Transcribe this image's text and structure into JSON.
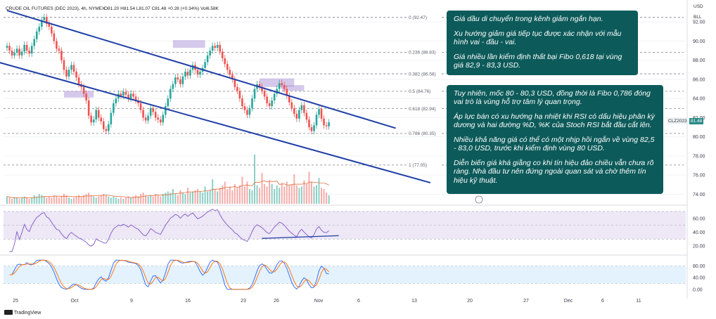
{
  "header": {
    "symbol": "CRUDE OIL FUTURES (DEC 2023), 4h, NYMEX",
    "ohlc": "O81.20 H81.54 L81.07 C81.48 +0.28 (+0.34%) Vol6.58K"
  },
  "units": {
    "currency": "USD",
    "mode": "BLL"
  },
  "last_price": {
    "symbol": "CLZ2023",
    "value": "81.48"
  },
  "notes": [
    {
      "paragraphs": [
        "Giá dầu di chuyển trong kênh giảm ngắn hạn.",
        "Xu hướng giảm giá tiếp tục được xác nhận với mẫu hình vai - đầu - vai.",
        "Giá nhiều lần kiểm định thất bại Fibo 0,618 tại vùng giá 82,9 - 83,3 USD."
      ]
    },
    {
      "paragraphs": [
        "Tuy nhiên, mốc 80 - 80,3 USD, đồng thời là Fibo 0,786 đóng vai trò là vùng hỗ trợ tâm lý quan trọng.",
        "Áp lực bán có xu hướng hạ nhiệt khi RSI có dấu hiệu phân kỳ dương và hai đường %D, %K của Stoch RSI bắt đầu cắt lên.",
        "Nhiều khả năng giá có thể có một nhịp hồi ngắn về vùng 82,5 - 83,0 USD, trước khi kiểm định vùng 80 USD.",
        "Diễn biến giá khá giằng co khi tín hiệu đảo chiều vẫn chưa rõ ràng. Nhà đầu tư nên đứng ngoài quan sát và chờ thêm tín hiệu kỹ thuật."
      ]
    }
  ],
  "footer": {
    "brand": "TradingView"
  },
  "chart_data": {
    "type": "candlestick",
    "x_tick_labels": [
      "25",
      "Oct",
      "9",
      "16",
      "23",
      "26",
      "Nov",
      "6",
      "13",
      "20",
      "27",
      "Dec",
      "6",
      "11"
    ],
    "price_axis": {
      "ylim": [
        73,
        94
      ],
      "tick_labels": [
        "92.00",
        "90.00",
        "88.00",
        "86.00",
        "84.00",
        "82.00",
        "80.00",
        "78.00",
        "76.00",
        "74.00"
      ],
      "tick_values": [
        92,
        90,
        88,
        86,
        84,
        82,
        80,
        78,
        76,
        74
      ]
    },
    "rsi_axis": {
      "ylim": [
        10,
        75
      ],
      "tick_labels": [
        "60.00",
        "40.00",
        "20.00"
      ],
      "tick_values": [
        60,
        40,
        20
      ],
      "band": [
        30,
        70
      ]
    },
    "stoch_axis": {
      "ylim": [
        -10,
        110
      ],
      "tick_labels": [
        "80.00",
        "40.00",
        "0.00"
      ],
      "tick_values": [
        80,
        40,
        0
      ],
      "band": [
        20,
        80
      ]
    },
    "fib_levels": [
      {
        "label": "0 (92.47)",
        "value": 92.47
      },
      {
        "label": "0.236 (88.83)",
        "value": 88.83
      },
      {
        "label": "0.382 (86.58)",
        "value": 86.58
      },
      {
        "label": "0.5 (84.76)",
        "value": 84.76
      },
      {
        "label": "0.618 (82.94)",
        "value": 82.94
      },
      {
        "label": "0.786 (80.35)",
        "value": 80.35
      },
      {
        "label": "1 (77.05)",
        "value": 77.05
      }
    ],
    "channel": {
      "upper": {
        "start": [
          0,
          93.2
        ],
        "end": [
          157,
          80.9
        ]
      },
      "lower": {
        "start": [
          -5,
          87.9
        ],
        "end": [
          171,
          75.2
        ]
      }
    },
    "pattern_zones": [
      {
        "name": "left shoulder",
        "x": [
          23,
          35
        ],
        "low": 84.1,
        "high": 84.8
      },
      {
        "name": "head",
        "x": [
          67,
          80
        ],
        "low": 89.3,
        "high": 90.1
      },
      {
        "name": "right shoulder",
        "x": [
          102,
          116
        ],
        "low": 85.2,
        "high": 86.1
      },
      {
        "name": "right shoulder",
        "x": [
          111,
          120
        ],
        "low": 84.8,
        "high": 85.4
      }
    ],
    "closes": [
      89.5,
      89.0,
      88.5,
      88.8,
      89.2,
      88.5,
      88.9,
      89.6,
      89.0,
      88.7,
      89.5,
      90.2,
      91.0,
      91.5,
      92.2,
      92.5,
      91.8,
      91.5,
      90.8,
      90.0,
      89.2,
      89.0,
      88.0,
      87.0,
      86.3,
      87.0,
      87.5,
      86.8,
      86.2,
      85.5,
      85.2,
      84.5,
      83.8,
      82.2,
      81.5,
      81.8,
      82.8,
      82.0,
      81.6,
      80.8,
      80.6,
      81.3,
      82.5,
      83.5,
      84.0,
      84.5,
      84.3,
      84.7,
      84.4,
      84.0,
      84.5,
      84.2,
      83.8,
      83.5,
      82.8,
      82.0,
      81.7,
      82.2,
      83.0,
      82.6,
      82.0,
      81.8,
      81.5,
      82.3,
      83.2,
      84.0,
      85.0,
      85.5,
      86.2,
      86.0,
      85.5,
      86.3,
      86.8,
      86.4,
      87.0,
      87.5,
      87.0,
      86.5,
      86.8,
      87.2,
      87.8,
      88.5,
      89.0,
      89.5,
      89.3,
      89.6,
      88.9,
      88.2,
      87.6,
      87.0,
      86.5,
      86.0,
      85.2,
      84.8,
      84.0,
      83.2,
      82.8,
      82.3,
      83.0,
      84.0,
      85.0,
      85.5,
      85.2,
      84.8,
      84.2,
      83.5,
      83.2,
      83.8,
      84.5,
      85.0,
      85.6,
      85.4,
      85.0,
      84.3,
      83.6,
      83.0,
      82.4,
      81.9,
      82.8,
      83.3,
      82.5,
      81.8,
      81.0,
      80.6,
      81.2,
      82.3,
      82.9,
      81.9,
      81.2,
      81.1,
      81.5
    ],
    "volumes": [
      0.6,
      0.5,
      0.4,
      0.5,
      0.5,
      0.4,
      0.5,
      0.6,
      0.5,
      0.4,
      0.5,
      0.7,
      0.6,
      0.8,
      0.7,
      0.6,
      0.5,
      0.6,
      0.5,
      0.7,
      0.6,
      0.5,
      0.6,
      0.8,
      0.7,
      0.5,
      0.4,
      0.5,
      0.6,
      0.7,
      0.6,
      0.7,
      0.8,
      0.9,
      0.7,
      0.6,
      0.5,
      0.6,
      0.7,
      0.8,
      0.7,
      0.6,
      0.5,
      0.6,
      0.5,
      0.4,
      0.5,
      0.4,
      0.5,
      0.6,
      0.5,
      0.6,
      0.7,
      0.6,
      0.8,
      0.9,
      0.7,
      0.6,
      0.7,
      0.6,
      0.8,
      0.7,
      0.6,
      0.8,
      0.9,
      1.0,
      0.9,
      1.2,
      0.8,
      0.7,
      1.1,
      0.9,
      0.8,
      1.3,
      0.9,
      1.0,
      1.1,
      1.2,
      1.0,
      0.9,
      1.4,
      1.0,
      1.1,
      2.0,
      1.2,
      1.0,
      1.3,
      1.5,
      1.8,
      1.2,
      1.4,
      1.1,
      1.6,
      1.3,
      1.5,
      2.2,
      1.4,
      1.8,
      1.2,
      1.1,
      4.0,
      1.5,
      1.3,
      2.5,
      1.6,
      1.4,
      1.9,
      1.6,
      1.2,
      1.5,
      1.3,
      1.7,
      1.4,
      1.8,
      1.5,
      1.6,
      2.4,
      1.5,
      1.3,
      1.4,
      1.9,
      1.6,
      2.6,
      1.8,
      1.4,
      1.5,
      2.1,
      1.3,
      1.2,
      0.9,
      0.7
    ]
  }
}
